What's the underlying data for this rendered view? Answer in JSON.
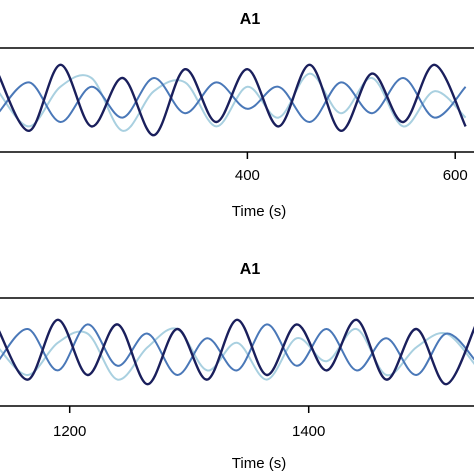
{
  "chart_data": [
    {
      "type": "line",
      "title": "A1",
      "xlabel": "Time (s)",
      "ylabel": "",
      "xlim": [
        160,
        620
      ],
      "ylim": [
        -1,
        1
      ],
      "xticks": [
        400,
        600
      ],
      "xtick_labels": [
        "400",
        "600"
      ],
      "grid": false,
      "legend": "none",
      "series": [
        {
          "color": "#1a1f5c",
          "x": [
            160,
            190,
            220,
            250,
            280,
            310,
            340,
            370,
            400,
            430,
            460,
            490,
            520,
            550,
            580,
            610
          ],
          "y": [
            0.6,
            -0.7,
            0.8,
            -0.6,
            0.5,
            -0.8,
            0.7,
            -0.5,
            0.7,
            -0.6,
            0.8,
            -0.7,
            0.6,
            -0.5,
            0.8,
            -0.6
          ]
        },
        {
          "color": "#4a78b8",
          "x": [
            160,
            190,
            220,
            250,
            280,
            310,
            340,
            370,
            400,
            430,
            460,
            490,
            520,
            550,
            580,
            610
          ],
          "y": [
            -0.3,
            0.4,
            -0.5,
            0.3,
            -0.4,
            0.5,
            -0.3,
            0.4,
            -0.2,
            0.3,
            -0.5,
            0.4,
            -0.3,
            0.5,
            -0.4,
            0.3
          ]
        },
        {
          "color": "#a9d0e0",
          "x": [
            160,
            190,
            220,
            250,
            280,
            310,
            340,
            370,
            400,
            430,
            460,
            490,
            520,
            550,
            580,
            610
          ],
          "y": [
            0.2,
            -0.6,
            0.3,
            0.5,
            -0.7,
            0.2,
            0.4,
            -0.6,
            0.3,
            -0.4,
            0.6,
            -0.3,
            0.5,
            -0.6,
            0.2,
            -0.4
          ]
        }
      ]
    },
    {
      "type": "line",
      "title": "A1",
      "xlabel": "Time (s)",
      "ylabel": "",
      "xlim": [
        1140,
        1540
      ],
      "ylim": [
        -1,
        1
      ],
      "xticks": [
        1200,
        1400
      ],
      "xtick_labels": [
        "1200",
        "1400"
      ],
      "grid": false,
      "legend": "none",
      "series": [
        {
          "color": "#1a1f5c",
          "x": [
            1140,
            1165,
            1190,
            1215,
            1240,
            1265,
            1290,
            1315,
            1340,
            1365,
            1390,
            1415,
            1440,
            1465,
            1490,
            1515,
            1540
          ],
          "y": [
            0.5,
            -0.6,
            0.7,
            -0.5,
            0.6,
            -0.7,
            0.5,
            -0.6,
            0.7,
            -0.5,
            0.6,
            -0.4,
            0.7,
            -0.6,
            0.5,
            -0.7,
            0.6
          ]
        },
        {
          "color": "#4a78b8",
          "x": [
            1140,
            1165,
            1190,
            1215,
            1240,
            1265,
            1290,
            1315,
            1340,
            1365,
            1390,
            1415,
            1440,
            1465,
            1490,
            1515,
            1540
          ],
          "y": [
            -0.2,
            0.5,
            -0.4,
            0.6,
            -0.3,
            0.4,
            -0.5,
            0.3,
            -0.4,
            0.6,
            -0.3,
            0.5,
            -0.4,
            0.3,
            -0.5,
            0.4,
            -0.2
          ]
        },
        {
          "color": "#a9d0e0",
          "x": [
            1140,
            1165,
            1190,
            1215,
            1240,
            1265,
            1290,
            1315,
            1340,
            1365,
            1390,
            1415,
            1440,
            1465,
            1490,
            1515,
            1540
          ],
          "y": [
            0.1,
            -0.5,
            0.2,
            0.4,
            -0.6,
            0.1,
            0.5,
            -0.4,
            0.2,
            -0.6,
            0.3,
            -0.2,
            0.5,
            -0.5,
            0.1,
            0.4,
            -0.3
          ]
        }
      ]
    }
  ]
}
